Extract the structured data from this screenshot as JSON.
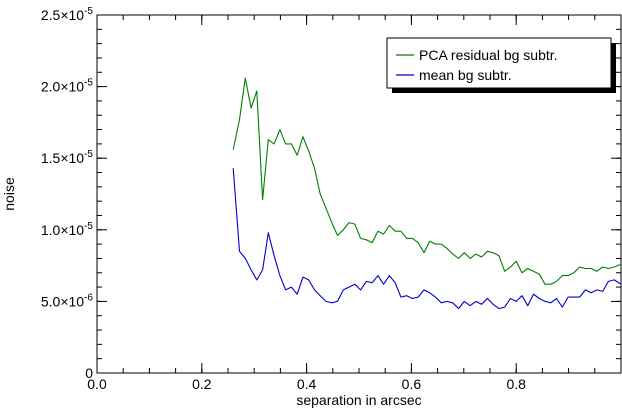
{
  "chart_data": {
    "type": "line",
    "title": "",
    "xlabel": "separation in arcsec",
    "ylabel": "noise",
    "xlim": [
      0.0,
      1.0
    ],
    "ylim": [
      0,
      2.5e-05
    ],
    "x_ticks": [
      {
        "value": 0.0,
        "label": "0.0"
      },
      {
        "value": 0.2,
        "label": "0.2"
      },
      {
        "value": 0.4,
        "label": "0.4"
      },
      {
        "value": 0.6,
        "label": "0.6"
      },
      {
        "value": 0.8,
        "label": "0.8"
      }
    ],
    "y_ticks": [
      {
        "value": 0,
        "label": "0",
        "mantissa": "0",
        "exponent": ""
      },
      {
        "value": 5e-06,
        "label": "5.0×10⁻⁶",
        "mantissa": "5.0×10",
        "exponent": "-6"
      },
      {
        "value": 1e-05,
        "label": "1.0×10⁻⁵",
        "mantissa": "1.0×10",
        "exponent": "-5"
      },
      {
        "value": 1.5e-05,
        "label": "1.5×10⁻⁵",
        "mantissa": "1.5×10",
        "exponent": "-5"
      },
      {
        "value": 2e-05,
        "label": "2.0×10⁻⁵",
        "mantissa": "2.0×10",
        "exponent": "-5"
      },
      {
        "value": 2.5e-05,
        "label": "2.5×10⁻⁵",
        "mantissa": "2.5×10",
        "exponent": "-5"
      }
    ],
    "x_minor_step": 0.05,
    "y_minor_step": 1e-06,
    "grid": false,
    "legend_position": "top-right",
    "series": [
      {
        "name": "PCA residual bg subtr.",
        "color": "#008000",
        "x": [
          0.26,
          0.272,
          0.283,
          0.294,
          0.305,
          0.316,
          0.327,
          0.338,
          0.349,
          0.36,
          0.371,
          0.382,
          0.393,
          0.404,
          0.415,
          0.426,
          0.437,
          0.448,
          0.459,
          0.47,
          0.481,
          0.492,
          0.503,
          0.514,
          0.525,
          0.536,
          0.547,
          0.558,
          0.569,
          0.58,
          0.591,
          0.602,
          0.613,
          0.624,
          0.635,
          0.646,
          0.657,
          0.668,
          0.679,
          0.69,
          0.701,
          0.712,
          0.723,
          0.734,
          0.745,
          0.756,
          0.767,
          0.778,
          0.789,
          0.8,
          0.811,
          0.822,
          0.833,
          0.844,
          0.855,
          0.866,
          0.877,
          0.888,
          0.899,
          0.91,
          0.921,
          0.932,
          0.943,
          0.954,
          0.965,
          0.976,
          0.987,
          1.0
        ],
        "y": [
          1.56e-05,
          1.77e-05,
          2.06e-05,
          1.85e-05,
          1.97e-05,
          1.21e-05,
          1.63e-05,
          1.6e-05,
          1.7e-05,
          1.6e-05,
          1.6e-05,
          1.52e-05,
          1.65e-05,
          1.55e-05,
          1.43e-05,
          1.25e-05,
          1.15e-05,
          1.05e-05,
          9.6e-06,
          1e-05,
          1.05e-05,
          1.04e-05,
          9.4e-06,
          9.3e-06,
          9.1e-06,
          9.9e-06,
          9.7e-06,
          1.03e-05,
          9.9e-06,
          9.9e-06,
          9.4e-06,
          9.4e-06,
          9.1e-06,
          8.4e-06,
          9.2e-06,
          9e-06,
          9e-06,
          8.7e-06,
          8.3e-06,
          8e-06,
          8.4e-06,
          8e-06,
          8.3e-06,
          8.1e-06,
          8.5e-06,
          8.4e-06,
          8.2e-06,
          7.1e-06,
          7.4e-06,
          7.8e-06,
          7e-06,
          7.3e-06,
          7.1e-06,
          6.9e-06,
          6.2e-06,
          6.2e-06,
          6.4e-06,
          6.8e-06,
          6.8e-06,
          7e-06,
          7.4e-06,
          7.3e-06,
          7.3e-06,
          7.1e-06,
          7.4e-06,
          7.3e-06,
          7.4e-06,
          7.6e-06
        ]
      },
      {
        "name": "mean bg subtr.",
        "color": "#0000cc",
        "x": [
          0.26,
          0.272,
          0.283,
          0.294,
          0.305,
          0.316,
          0.327,
          0.338,
          0.349,
          0.36,
          0.371,
          0.382,
          0.393,
          0.404,
          0.415,
          0.426,
          0.437,
          0.448,
          0.459,
          0.47,
          0.481,
          0.492,
          0.503,
          0.514,
          0.525,
          0.536,
          0.547,
          0.558,
          0.569,
          0.58,
          0.591,
          0.602,
          0.613,
          0.624,
          0.635,
          0.646,
          0.657,
          0.668,
          0.679,
          0.69,
          0.701,
          0.712,
          0.723,
          0.734,
          0.745,
          0.756,
          0.767,
          0.778,
          0.789,
          0.8,
          0.811,
          0.822,
          0.833,
          0.844,
          0.855,
          0.866,
          0.877,
          0.888,
          0.899,
          0.91,
          0.921,
          0.932,
          0.943,
          0.954,
          0.965,
          0.976,
          0.987,
          1.0
        ],
        "y": [
          1.43e-05,
          8.5e-06,
          8e-06,
          7.2e-06,
          6.5e-06,
          7.2e-06,
          9.8e-06,
          8.2e-06,
          6.8e-06,
          5.8e-06,
          6e-06,
          5.5e-06,
          6.7e-06,
          6.5e-06,
          5.8e-06,
          5.4e-06,
          5e-06,
          4.9e-06,
          5e-06,
          5.8e-06,
          6e-06,
          6.2e-06,
          5.8e-06,
          6.4e-06,
          6.3e-06,
          6.8e-06,
          6.2e-06,
          6.8e-06,
          6.3e-06,
          5.3e-06,
          5.4e-06,
          5.2e-06,
          5.3e-06,
          5.8e-06,
          5.6e-06,
          5.3e-06,
          4.9e-06,
          5e-06,
          4.9e-06,
          4.5e-06,
          5e-06,
          4.7e-06,
          5e-06,
          4.8e-06,
          5.2e-06,
          4.8e-06,
          4.5e-06,
          4.6e-06,
          5.2e-06,
          5e-06,
          5.4e-06,
          4.7e-06,
          5.5e-06,
          5.2e-06,
          5e-06,
          4.9e-06,
          5.2e-06,
          4.6e-06,
          5.3e-06,
          5.3e-06,
          5.3e-06,
          5.8e-06,
          5.6e-06,
          5.8e-06,
          5.7e-06,
          6.4e-06,
          6.5e-06,
          6.2e-06
        ]
      }
    ]
  }
}
